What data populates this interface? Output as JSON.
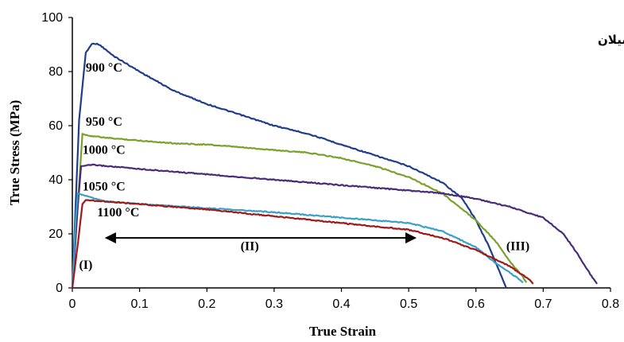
{
  "chart_data": {
    "type": "line",
    "title": "ب) ناحیه تکفاز β: افت تدریجی تنش سیلان",
    "xlabel": "True Strain",
    "ylabel": "True Stress (MPa)",
    "xlim": [
      0,
      0.8
    ],
    "ylim": [
      0,
      100
    ],
    "x_ticks": [
      "0",
      "0.1",
      "0.2",
      "0.3",
      "0.4",
      "0.5",
      "0.6",
      "0.7",
      "0.8"
    ],
    "y_ticks": [
      "0",
      "20",
      "40",
      "60",
      "80",
      "100"
    ],
    "grid": false,
    "legend": "none",
    "series": [
      {
        "name": "900 °C",
        "color": "#1f3d8a",
        "points": [
          [
            0,
            0
          ],
          [
            0.01,
            62
          ],
          [
            0.02,
            87
          ],
          [
            0.03,
            90.5
          ],
          [
            0.04,
            90
          ],
          [
            0.06,
            86
          ],
          [
            0.1,
            80
          ],
          [
            0.15,
            73
          ],
          [
            0.2,
            68
          ],
          [
            0.25,
            64
          ],
          [
            0.3,
            60
          ],
          [
            0.35,
            57
          ],
          [
            0.4,
            53
          ],
          [
            0.45,
            49
          ],
          [
            0.5,
            45
          ],
          [
            0.55,
            39
          ],
          [
            0.58,
            33
          ],
          [
            0.6,
            25
          ],
          [
            0.62,
            15
          ],
          [
            0.64,
            3
          ],
          [
            0.645,
            0
          ]
        ]
      },
      {
        "name": "950 °C",
        "color": "#7ca02c",
        "points": [
          [
            0,
            0
          ],
          [
            0.01,
            38
          ],
          [
            0.015,
            57
          ],
          [
            0.02,
            56.5
          ],
          [
            0.05,
            55.5
          ],
          [
            0.1,
            54.5
          ],
          [
            0.15,
            53.5
          ],
          [
            0.2,
            53
          ],
          [
            0.25,
            52
          ],
          [
            0.3,
            51
          ],
          [
            0.35,
            50
          ],
          [
            0.4,
            48
          ],
          [
            0.45,
            45
          ],
          [
            0.5,
            41
          ],
          [
            0.55,
            35
          ],
          [
            0.6,
            25
          ],
          [
            0.63,
            17
          ],
          [
            0.65,
            10
          ],
          [
            0.67,
            4
          ],
          [
            0.675,
            2
          ]
        ]
      },
      {
        "name": "1000 °C",
        "color": "#4a2a7a",
        "points": [
          [
            0,
            0
          ],
          [
            0.008,
            30
          ],
          [
            0.013,
            45
          ],
          [
            0.03,
            45.5
          ],
          [
            0.1,
            44
          ],
          [
            0.2,
            42
          ],
          [
            0.3,
            40
          ],
          [
            0.4,
            38
          ],
          [
            0.5,
            36
          ],
          [
            0.55,
            35
          ],
          [
            0.6,
            33
          ],
          [
            0.65,
            30
          ],
          [
            0.7,
            26
          ],
          [
            0.73,
            20
          ],
          [
            0.75,
            13
          ],
          [
            0.77,
            5
          ],
          [
            0.78,
            1.5
          ]
        ]
      },
      {
        "name": "1050 °C",
        "color": "#3aa0c8",
        "points": [
          [
            0,
            0
          ],
          [
            0.005,
            25
          ],
          [
            0.008,
            35
          ],
          [
            0.02,
            34
          ],
          [
            0.05,
            32
          ],
          [
            0.1,
            31
          ],
          [
            0.2,
            29.5
          ],
          [
            0.3,
            28
          ],
          [
            0.4,
            26
          ],
          [
            0.5,
            24
          ],
          [
            0.55,
            21
          ],
          [
            0.6,
            15
          ],
          [
            0.63,
            9
          ],
          [
            0.66,
            4
          ],
          [
            0.67,
            2
          ]
        ]
      },
      {
        "name": "1100 °C",
        "color": "#9e1a1a",
        "points": [
          [
            0,
            0
          ],
          [
            0.008,
            16
          ],
          [
            0.015,
            31
          ],
          [
            0.02,
            32.5
          ],
          [
            0.05,
            32
          ],
          [
            0.1,
            31
          ],
          [
            0.2,
            29
          ],
          [
            0.3,
            26.5
          ],
          [
            0.4,
            24
          ],
          [
            0.5,
            21.5
          ],
          [
            0.55,
            18.5
          ],
          [
            0.6,
            14
          ],
          [
            0.65,
            8
          ],
          [
            0.68,
            3
          ],
          [
            0.685,
            1.5
          ]
        ]
      }
    ],
    "series_label_positions": [
      {
        "text": "900 °C",
        "x": 0.02,
        "y": 80
      },
      {
        "text": "950 °C",
        "x": 0.02,
        "y": 60
      },
      {
        "text": "1000 °C",
        "x": 0.015,
        "y": 49.5
      },
      {
        "text": "1050 °C",
        "x": 0.015,
        "y": 36
      },
      {
        "text": "1100 °C",
        "x": 0.037,
        "y": 26.5
      }
    ],
    "annotations": [
      {
        "text": "(I)",
        "x": 0.01,
        "y": 7
      },
      {
        "text": "(II)",
        "x": 0.25,
        "y": 14
      },
      {
        "text": "(III)",
        "x": 0.645,
        "y": 14
      }
    ],
    "arrow": {
      "x_start": 0.05,
      "x_end": 0.51,
      "y": 18.5
    }
  }
}
